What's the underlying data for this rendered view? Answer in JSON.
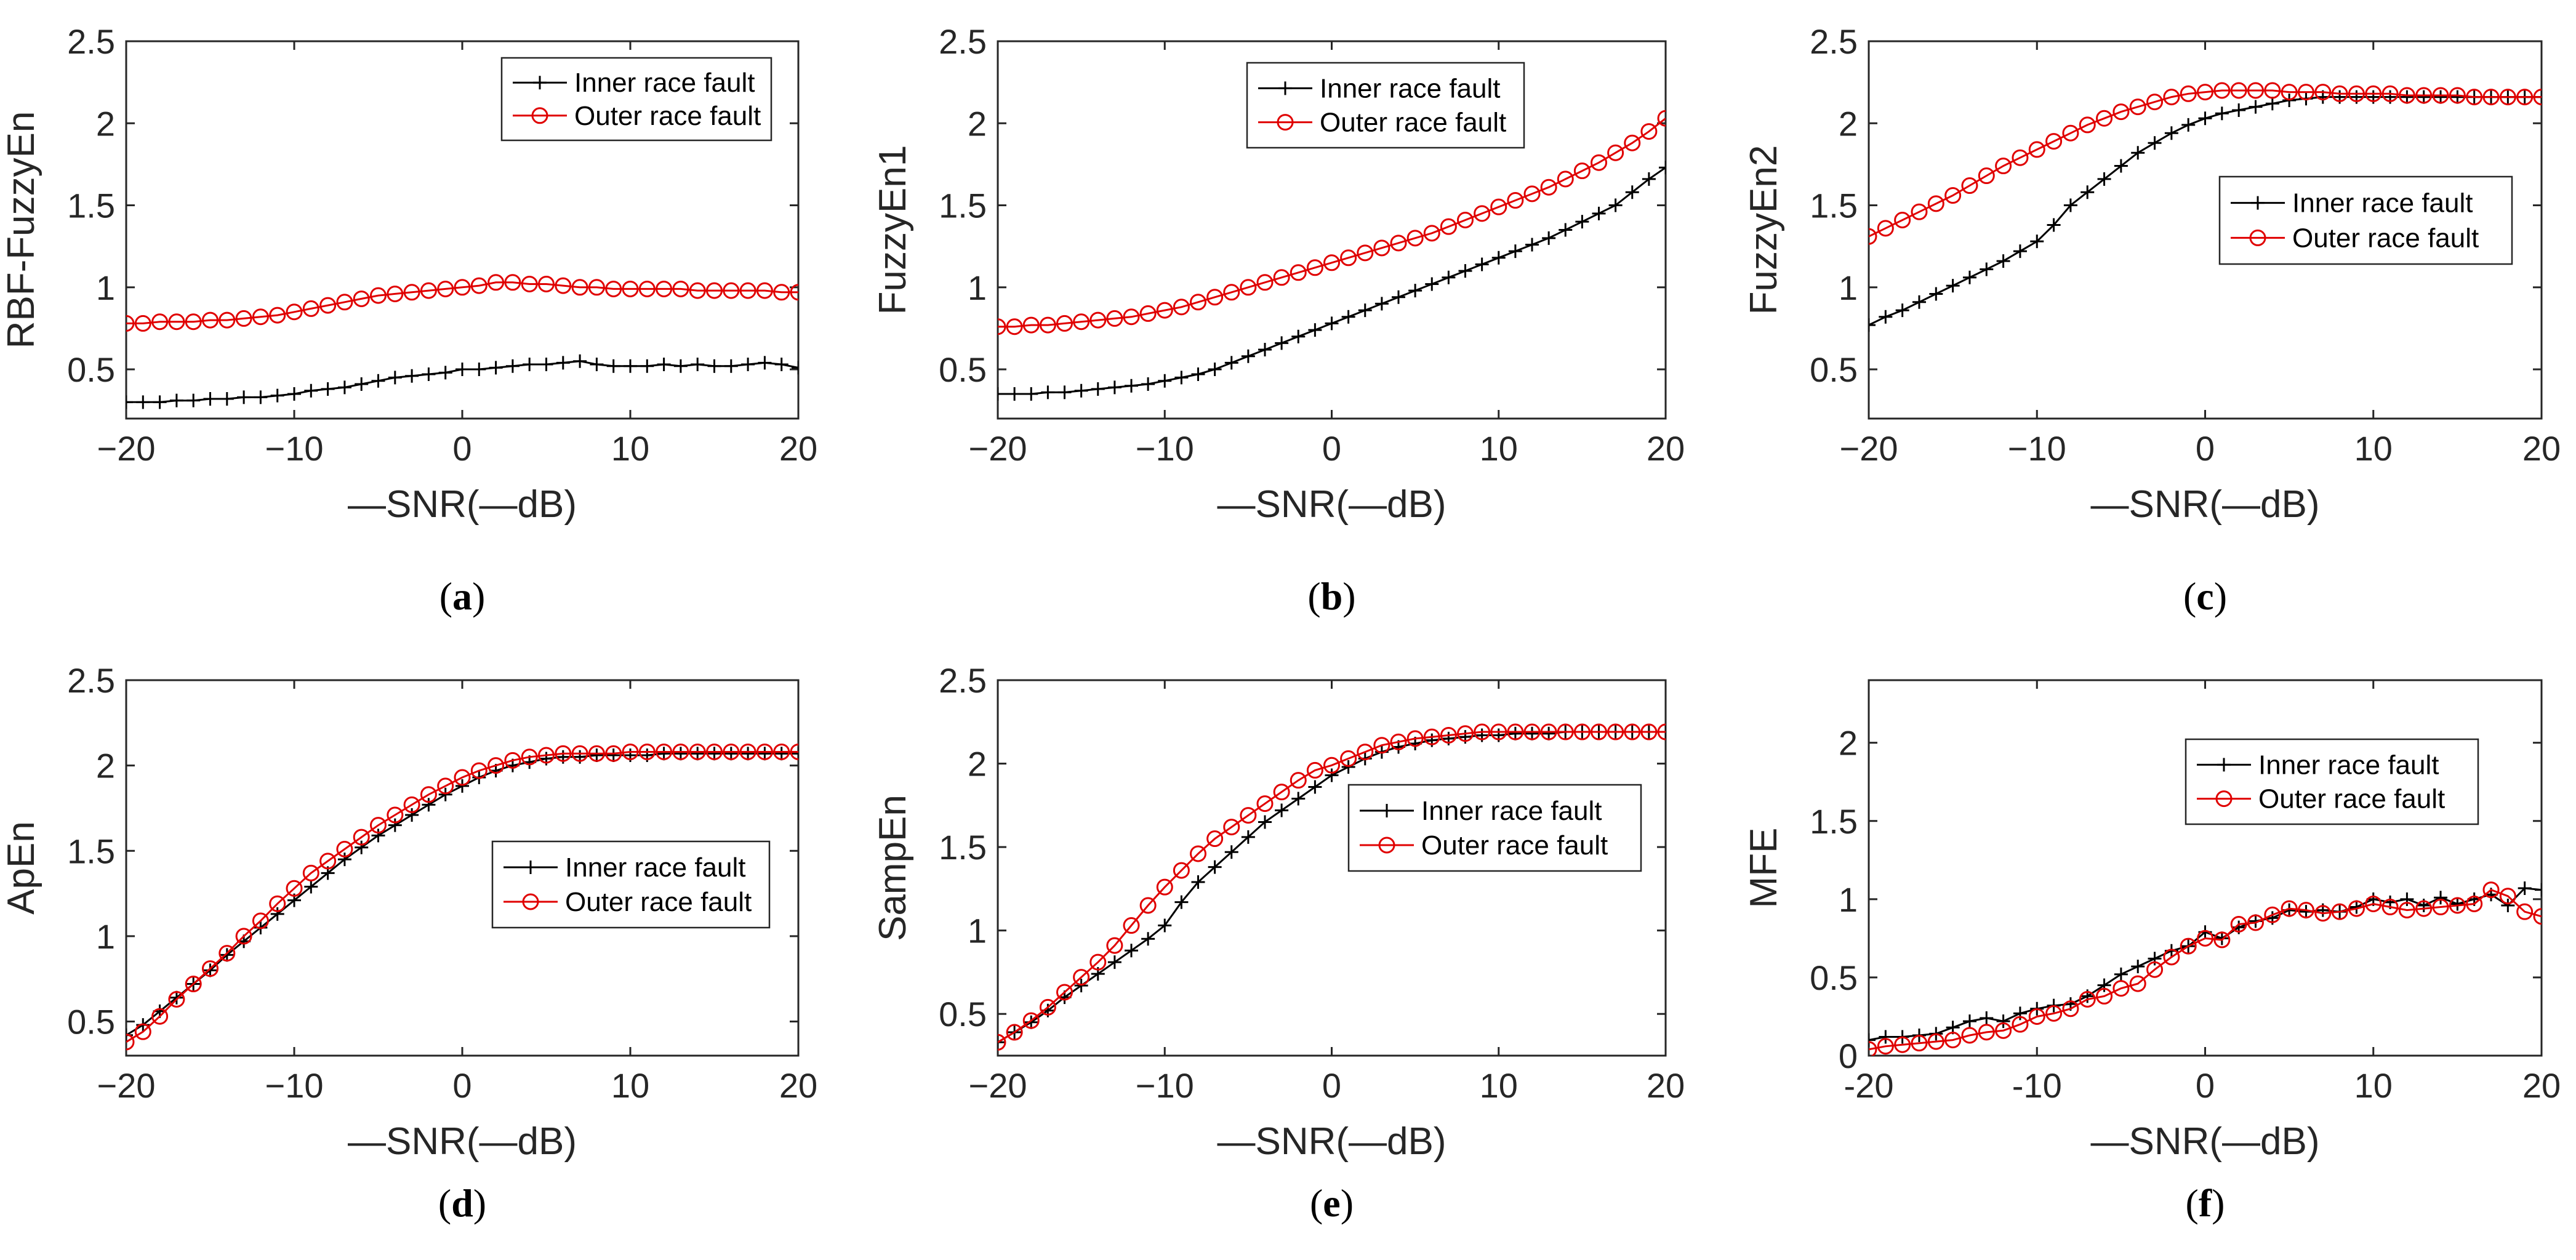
{
  "figure": {
    "colors": {
      "inner": "#000000",
      "outer": "#e00000",
      "axis": "#262626"
    },
    "series_names": [
      "Inner race fault",
      "Outer race fault"
    ]
  },
  "chart_data": [
    {
      "id": "a",
      "type": "line",
      "caption_label": "a",
      "ylabel": "RBF-FuzzyEn",
      "xlabel": "—SNR(—dB)",
      "xlim": [
        -20,
        20
      ],
      "ylim": [
        0.2,
        2.5
      ],
      "xticks": [
        -20,
        -10,
        0,
        10,
        20
      ],
      "xtick_labels": [
        "−20",
        "−10",
        "0",
        "10",
        "20"
      ],
      "yticks": [
        0.5,
        1,
        1.5,
        2,
        2.5
      ],
      "ytick_labels": [
        "0.5",
        "1",
        "1.5",
        "2",
        "2.5"
      ],
      "legend_loc": "top-right",
      "x": [
        -20,
        -19,
        -18,
        -17,
        -16,
        -15,
        -14,
        -13,
        -12,
        -11,
        -10,
        -9,
        -8,
        -7,
        -6,
        -5,
        -4,
        -3,
        -2,
        -1,
        0,
        1,
        2,
        3,
        4,
        5,
        6,
        7,
        8,
        9,
        10,
        11,
        12,
        13,
        14,
        15,
        16,
        17,
        18,
        19,
        20
      ],
      "series": [
        {
          "name": "Inner race fault",
          "marker": "plus",
          "values": [
            0.3,
            0.3,
            0.3,
            0.31,
            0.31,
            0.32,
            0.32,
            0.33,
            0.33,
            0.34,
            0.35,
            0.37,
            0.38,
            0.39,
            0.41,
            0.43,
            0.45,
            0.46,
            0.47,
            0.48,
            0.5,
            0.5,
            0.51,
            0.52,
            0.53,
            0.53,
            0.54,
            0.55,
            0.53,
            0.52,
            0.52,
            0.52,
            0.53,
            0.52,
            0.53,
            0.52,
            0.52,
            0.53,
            0.54,
            0.53,
            0.51
          ]
        },
        {
          "name": "Outer race fault",
          "marker": "circle",
          "values": [
            0.78,
            0.78,
            0.79,
            0.79,
            0.79,
            0.8,
            0.8,
            0.81,
            0.82,
            0.83,
            0.85,
            0.87,
            0.89,
            0.91,
            0.93,
            0.95,
            0.96,
            0.97,
            0.98,
            0.99,
            1.0,
            1.01,
            1.03,
            1.03,
            1.02,
            1.02,
            1.01,
            1.0,
            1.0,
            0.99,
            0.99,
            0.99,
            0.99,
            0.99,
            0.98,
            0.98,
            0.98,
            0.98,
            0.98,
            0.97,
            0.97
          ]
        }
      ]
    },
    {
      "id": "b",
      "type": "line",
      "caption_label": "b",
      "ylabel": "FuzzyEn1",
      "xlabel": "—SNR(—dB)",
      "xlim": [
        -20,
        20
      ],
      "ylim": [
        0.2,
        2.5
      ],
      "xticks": [
        -20,
        -10,
        0,
        10,
        20
      ],
      "xtick_labels": [
        "−20",
        "−10",
        "0",
        "10",
        "20"
      ],
      "yticks": [
        0.5,
        1,
        1.5,
        2,
        2.5
      ],
      "ytick_labels": [
        "0.5",
        "1",
        "1.5",
        "2",
        "2.5"
      ],
      "legend_loc": "top-center",
      "x": [
        -20,
        -19,
        -18,
        -17,
        -16,
        -15,
        -14,
        -13,
        -12,
        -11,
        -10,
        -9,
        -8,
        -7,
        -6,
        -5,
        -4,
        -3,
        -2,
        -1,
        0,
        1,
        2,
        3,
        4,
        5,
        6,
        7,
        8,
        9,
        10,
        11,
        12,
        13,
        14,
        15,
        16,
        17,
        18,
        19,
        20
      ],
      "series": [
        {
          "name": "Inner race fault",
          "marker": "plus",
          "values": [
            0.35,
            0.35,
            0.35,
            0.36,
            0.36,
            0.37,
            0.38,
            0.39,
            0.4,
            0.41,
            0.43,
            0.45,
            0.47,
            0.5,
            0.54,
            0.58,
            0.62,
            0.66,
            0.7,
            0.74,
            0.78,
            0.82,
            0.86,
            0.9,
            0.94,
            0.98,
            1.02,
            1.06,
            1.1,
            1.14,
            1.18,
            1.22,
            1.26,
            1.3,
            1.35,
            1.4,
            1.45,
            1.5,
            1.58,
            1.66,
            1.73
          ]
        },
        {
          "name": "Outer race fault",
          "marker": "circle",
          "values": [
            0.76,
            0.76,
            0.77,
            0.77,
            0.78,
            0.79,
            0.8,
            0.81,
            0.82,
            0.84,
            0.86,
            0.88,
            0.91,
            0.94,
            0.97,
            1.0,
            1.03,
            1.06,
            1.09,
            1.12,
            1.15,
            1.18,
            1.21,
            1.24,
            1.27,
            1.3,
            1.33,
            1.37,
            1.41,
            1.45,
            1.49,
            1.53,
            1.57,
            1.61,
            1.66,
            1.71,
            1.76,
            1.82,
            1.88,
            1.95,
            2.03
          ]
        }
      ]
    },
    {
      "id": "c",
      "type": "line",
      "caption_label": "c",
      "ylabel": "FuzzyEn2",
      "xlabel": "—SNR(—dB)",
      "xlim": [
        -20,
        20
      ],
      "ylim": [
        0.2,
        2.5
      ],
      "xticks": [
        -20,
        -10,
        0,
        10,
        20
      ],
      "xtick_labels": [
        "−20",
        "−10",
        "0",
        "10",
        "20"
      ],
      "yticks": [
        0.5,
        1,
        1.5,
        2,
        2.5
      ],
      "ytick_labels": [
        "0.5",
        "1",
        "1.5",
        "2",
        "2.5"
      ],
      "legend_loc": "middle-right",
      "x": [
        -20,
        -19,
        -18,
        -17,
        -16,
        -15,
        -14,
        -13,
        -12,
        -11,
        -10,
        -9,
        -8,
        -7,
        -6,
        -5,
        -4,
        -3,
        -2,
        -1,
        0,
        1,
        2,
        3,
        4,
        5,
        6,
        7,
        8,
        9,
        10,
        11,
        12,
        13,
        14,
        15,
        16,
        17,
        18,
        19,
        20
      ],
      "series": [
        {
          "name": "Inner race fault",
          "marker": "plus",
          "values": [
            0.77,
            0.82,
            0.86,
            0.91,
            0.96,
            1.01,
            1.06,
            1.11,
            1.16,
            1.22,
            1.28,
            1.38,
            1.5,
            1.58,
            1.66,
            1.74,
            1.82,
            1.88,
            1.94,
            1.99,
            2.03,
            2.06,
            2.08,
            2.1,
            2.12,
            2.14,
            2.15,
            2.16,
            2.16,
            2.16,
            2.16,
            2.16,
            2.16,
            2.16,
            2.16,
            2.16,
            2.16,
            2.16,
            2.16,
            2.16,
            2.16
          ]
        },
        {
          "name": "Outer race fault",
          "marker": "circle",
          "values": [
            1.31,
            1.36,
            1.41,
            1.46,
            1.51,
            1.56,
            1.62,
            1.68,
            1.74,
            1.79,
            1.84,
            1.89,
            1.94,
            1.99,
            2.03,
            2.07,
            2.1,
            2.13,
            2.16,
            2.18,
            2.19,
            2.2,
            2.2,
            2.2,
            2.2,
            2.19,
            2.19,
            2.19,
            2.18,
            2.18,
            2.18,
            2.18,
            2.17,
            2.17,
            2.17,
            2.17,
            2.16,
            2.16,
            2.16,
            2.16,
            2.16
          ]
        }
      ]
    },
    {
      "id": "d",
      "type": "line",
      "caption_label": "d",
      "ylabel": "ApEn",
      "xlabel": "—SNR(—dB)",
      "xlim": [
        -20,
        20
      ],
      "ylim": [
        0.3,
        2.5
      ],
      "xticks": [
        -20,
        -10,
        0,
        10,
        20
      ],
      "xtick_labels": [
        "−20",
        "−10",
        "0",
        "10",
        "20"
      ],
      "yticks": [
        0.5,
        1,
        1.5,
        2,
        2.5
      ],
      "ytick_labels": [
        "0.5",
        "1",
        "1.5",
        "2",
        "2.5"
      ],
      "legend_loc": "middle-right",
      "x": [
        -20,
        -19,
        -18,
        -17,
        -16,
        -15,
        -14,
        -13,
        -12,
        -11,
        -10,
        -9,
        -8,
        -7,
        -6,
        -5,
        -4,
        -3,
        -2,
        -1,
        0,
        1,
        2,
        3,
        4,
        5,
        6,
        7,
        8,
        9,
        10,
        11,
        12,
        13,
        14,
        15,
        16,
        17,
        18,
        19,
        20
      ],
      "series": [
        {
          "name": "Inner race fault",
          "marker": "plus",
          "values": [
            0.42,
            0.48,
            0.56,
            0.64,
            0.72,
            0.8,
            0.89,
            0.97,
            1.05,
            1.13,
            1.21,
            1.29,
            1.37,
            1.45,
            1.52,
            1.59,
            1.65,
            1.71,
            1.77,
            1.83,
            1.88,
            1.93,
            1.97,
            2.0,
            2.02,
            2.04,
            2.05,
            2.05,
            2.06,
            2.06,
            2.06,
            2.06,
            2.07,
            2.07,
            2.07,
            2.07,
            2.07,
            2.07,
            2.07,
            2.07,
            2.07
          ]
        },
        {
          "name": "Outer race fault",
          "marker": "circle",
          "values": [
            0.38,
            0.44,
            0.53,
            0.63,
            0.72,
            0.81,
            0.9,
            1.0,
            1.09,
            1.19,
            1.28,
            1.37,
            1.44,
            1.51,
            1.58,
            1.65,
            1.71,
            1.77,
            1.83,
            1.88,
            1.93,
            1.97,
            2.0,
            2.03,
            2.05,
            2.06,
            2.07,
            2.07,
            2.07,
            2.07,
            2.08,
            2.08,
            2.08,
            2.08,
            2.08,
            2.08,
            2.08,
            2.08,
            2.08,
            2.08,
            2.08
          ]
        }
      ]
    },
    {
      "id": "e",
      "type": "line",
      "caption_label": "e",
      "ylabel": "SampEn",
      "xlabel": "—SNR(—dB)",
      "xlim": [
        -20,
        20
      ],
      "ylim": [
        0.25,
        2.5
      ],
      "xticks": [
        -20,
        -10,
        0,
        10,
        20
      ],
      "xtick_labels": [
        "−20",
        "−10",
        "0",
        "10",
        "20"
      ],
      "yticks": [
        0.5,
        1,
        1.5,
        2,
        2.5
      ],
      "ytick_labels": [
        "0.5",
        "1",
        "1.5",
        "2",
        "2.5"
      ],
      "legend_loc": "middle-right",
      "x": [
        -20,
        -19,
        -18,
        -17,
        -16,
        -15,
        -14,
        -13,
        -12,
        -11,
        -10,
        -9,
        -8,
        -7,
        -6,
        -5,
        -4,
        -3,
        -2,
        -1,
        0,
        1,
        2,
        3,
        4,
        5,
        6,
        7,
        8,
        9,
        10,
        11,
        12,
        13,
        14,
        15,
        16,
        17,
        18,
        19,
        20
      ],
      "series": [
        {
          "name": "Inner race fault",
          "marker": "plus",
          "values": [
            0.33,
            0.39,
            0.45,
            0.52,
            0.6,
            0.67,
            0.74,
            0.81,
            0.88,
            0.95,
            1.03,
            1.17,
            1.29,
            1.38,
            1.47,
            1.56,
            1.65,
            1.72,
            1.79,
            1.86,
            1.93,
            1.98,
            2.03,
            2.07,
            2.1,
            2.12,
            2.14,
            2.15,
            2.16,
            2.17,
            2.17,
            2.18,
            2.18,
            2.18,
            2.19,
            2.19,
            2.19,
            2.19,
            2.19,
            2.19,
            2.19
          ]
        },
        {
          "name": "Outer race fault",
          "marker": "circle",
          "values": [
            0.33,
            0.39,
            0.46,
            0.54,
            0.63,
            0.72,
            0.81,
            0.91,
            1.03,
            1.15,
            1.26,
            1.36,
            1.46,
            1.55,
            1.62,
            1.69,
            1.76,
            1.83,
            1.9,
            1.96,
            1.99,
            2.03,
            2.07,
            2.11,
            2.13,
            2.15,
            2.16,
            2.17,
            2.18,
            2.19,
            2.19,
            2.19,
            2.19,
            2.19,
            2.19,
            2.19,
            2.19,
            2.19,
            2.19,
            2.19,
            2.19
          ]
        }
      ]
    },
    {
      "id": "f",
      "type": "line",
      "caption_label": "f",
      "ylabel": "MFE",
      "xlabel": "—SNR(—dB)",
      "xlim": [
        -20,
        20
      ],
      "ylim": [
        0,
        2.4
      ],
      "xticks": [
        -20,
        -10,
        0,
        10,
        20
      ],
      "xtick_labels": [
        "-20",
        "-10",
        "0",
        "10",
        "20"
      ],
      "yticks": [
        0,
        0.5,
        1,
        1.5,
        2
      ],
      "ytick_labels": [
        "0",
        "0.5",
        "1",
        "1.5",
        "2"
      ],
      "legend_loc": "top-right",
      "x": [
        -20,
        -19,
        -18,
        -17,
        -16,
        -15,
        -14,
        -13,
        -12,
        -11,
        -10,
        -9,
        -8,
        -7,
        -6,
        -5,
        -4,
        -3,
        -2,
        -1,
        0,
        1,
        2,
        3,
        4,
        5,
        6,
        7,
        8,
        9,
        10,
        11,
        12,
        13,
        14,
        15,
        16,
        17,
        18,
        19,
        20
      ],
      "series": [
        {
          "name": "Inner race fault",
          "marker": "plus",
          "values": [
            0.1,
            0.12,
            0.12,
            0.13,
            0.14,
            0.18,
            0.22,
            0.24,
            0.22,
            0.27,
            0.3,
            0.32,
            0.33,
            0.38,
            0.45,
            0.52,
            0.57,
            0.62,
            0.67,
            0.7,
            0.79,
            0.75,
            0.82,
            0.86,
            0.88,
            0.93,
            0.92,
            0.93,
            0.92,
            0.95,
            1.0,
            0.98,
            1.0,
            0.96,
            1.01,
            0.97,
            1.0,
            1.03,
            0.96,
            1.07,
            1.06
          ]
        },
        {
          "name": "Outer race fault",
          "marker": "circle",
          "values": [
            0.04,
            0.06,
            0.07,
            0.08,
            0.09,
            0.1,
            0.13,
            0.15,
            0.16,
            0.2,
            0.25,
            0.27,
            0.3,
            0.36,
            0.38,
            0.43,
            0.46,
            0.55,
            0.63,
            0.7,
            0.75,
            0.74,
            0.84,
            0.85,
            0.9,
            0.94,
            0.93,
            0.91,
            0.92,
            0.94,
            0.97,
            0.95,
            0.93,
            0.94,
            0.95,
            0.96,
            0.97,
            1.06,
            1.02,
            0.92,
            0.89
          ]
        }
      ]
    }
  ]
}
